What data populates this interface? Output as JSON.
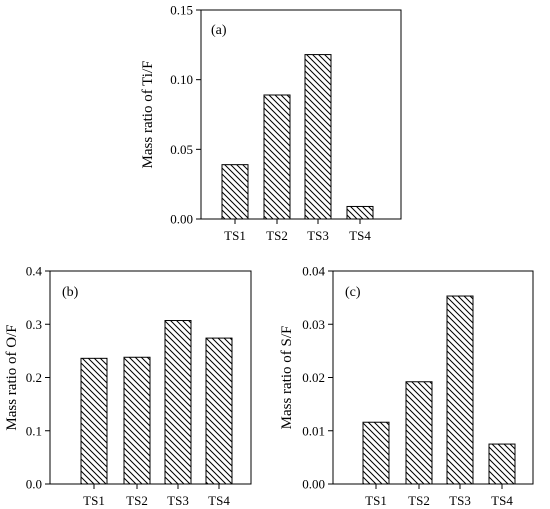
{
  "chart_data": [
    {
      "id": "a",
      "type": "bar",
      "panel_label": "(a)",
      "ylabel": "Mass ratio of Ti/F",
      "xlabel": "",
      "categories": [
        "TS1",
        "TS2",
        "TS3",
        "TS4"
      ],
      "values": [
        0.039,
        0.089,
        0.118,
        0.009
      ],
      "ylim": [
        0,
        0.15
      ],
      "yticks": [
        0,
        0.05,
        0.1,
        0.15
      ],
      "yticklabels": [
        "0.00",
        "0.05",
        "0.10",
        "0.15"
      ],
      "grid": false,
      "bar_fill": "hatched-diagonal",
      "bar_stroke": "#000000"
    },
    {
      "id": "b",
      "type": "bar",
      "panel_label": "(b)",
      "ylabel": "Mass ratio of O/F",
      "xlabel": "",
      "categories": [
        "TS1",
        "TS2",
        "TS3",
        "TS4"
      ],
      "values": [
        0.236,
        0.238,
        0.307,
        0.274
      ],
      "ylim": [
        0,
        0.4
      ],
      "yticks": [
        0,
        0.1,
        0.2,
        0.3,
        0.4
      ],
      "yticklabels": [
        "0.0",
        "0.1",
        "0.2",
        "0.3",
        "0.4"
      ],
      "grid": false,
      "bar_fill": "hatched-diagonal",
      "bar_stroke": "#000000"
    },
    {
      "id": "c",
      "type": "bar",
      "panel_label": "(c)",
      "ylabel": "Mass ratio of S/F",
      "xlabel": "",
      "categories": [
        "TS1",
        "TS2",
        "TS3",
        "TS4"
      ],
      "values": [
        0.0116,
        0.0192,
        0.0353,
        0.0075
      ],
      "ylim": [
        0,
        0.04
      ],
      "yticks": [
        0,
        0.01,
        0.02,
        0.03,
        0.04
      ],
      "yticklabels": [
        "0.00",
        "0.01",
        "0.02",
        "0.03",
        "0.04"
      ],
      "grid": false,
      "bar_fill": "hatched-diagonal",
      "bar_stroke": "#000000"
    }
  ]
}
